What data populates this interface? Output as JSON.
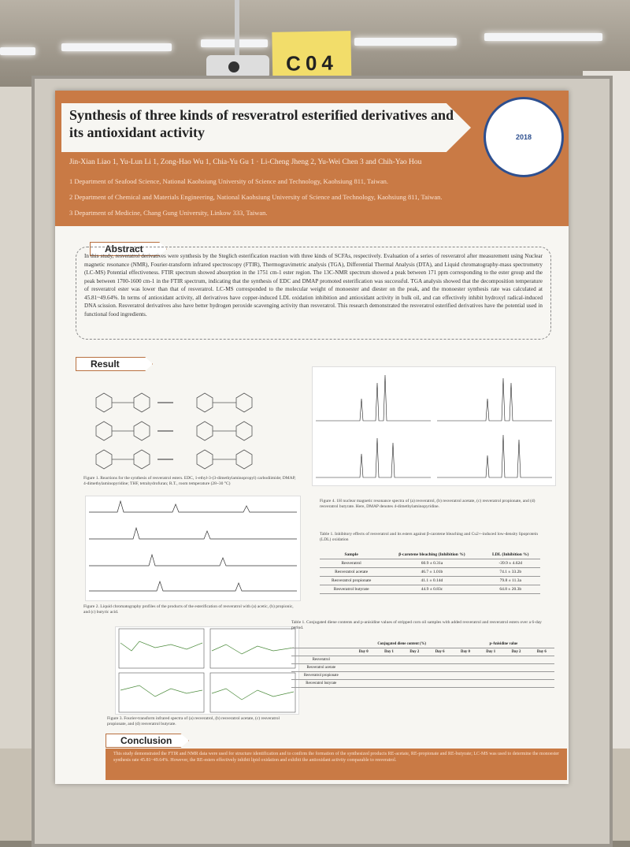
{
  "sign": {
    "label": "C04"
  },
  "poster": {
    "title_line1": "Synthesis of three kinds of resveratrol esterified derivatives and",
    "title_line2": "its antioxidant activity",
    "authors": "Jin-Xian Liao 1, Yu-Lun Li 1, Zong-Hao Wu 1, Chia-Yu Gu 1 · Li-Cheng Jheng 2, Yu-Wei Chen 3 and Chih-Yao Hou",
    "affiliations": [
      "1 Department of Seafood Science, National Kaohsiung University of Science and Technology, Kaohsiung 811, Taiwan.",
      "2 Department of Chemical and Materials Engineering, National Kaohsiung University of Science and Technology, Kaohsiung 811, Taiwan.",
      "3 Department of Medicine, Chang Gung University, Linkow 333, Taiwan."
    ],
    "logo_year": "2018",
    "abstract_heading": "Abstract",
    "abstract_text": "In this study, resveratrol derivatives were synthesis by the Steglich esterification reaction with three kinds of SCFAs, respectively. Evaluation of a series of resveratrol after measurement using Nuclear magnetic resonance (NMR), Fourier-transform infrared spectroscopy (FTIR), Thermogravimetric analysis (TGA), Differential Thermal Analysis (DTA), and Liquid chromatography-mass spectrometry (LC-MS) Potential effectiveness. FTIR spectrum showed absorption in the 1751 cm-1 ester region. The 13C-NMR spectrum showed a peak between 171 ppm corresponding to the ester group and the peak between 1700-1600 cm-1 in the FTIR spectrum, indicating that the synthesis of EDC and DMAP promoted esterification was successful. TGA analysis showed that the decomposition temperature of resveratrol ester was lower than that of resveratrol. LC-MS corresponded to the molecular weight of monoester and diester on the peak, and the monoester synthesis rate was calculated at 45.81~49.64%. In terms of antioxidant activity, all derivatives have copper-induced LDL oxidation inhibition and antioxidant activity in bulk oil, and can effectively inhibit hydroxyl radical-induced DNA scission. Resveratrol derivatives also have better hydrogen peroxide scavenging activity than resveratrol. This research demonstrated the resveratrol esterified derivatives have the potential used in functional food ingredients.",
    "result_heading": "Result",
    "fig1_caption": "Figure 1. Reactions for the synthesis of resveratrol esters. EDC, 1-ethyl-3-(3-dimethylaminopropyl) carbodiimide; DMAP, 4-dimethylaminopyridine; THF, tetrahydrofuran; R.T., room temperature (28~30 °C)",
    "fig2_caption": "Figure 2. Liquid chromatography profiles of the products of the esterification of resveratrol with (a) acetic, (b) propionic, and (c) butyric acid.",
    "fig3_caption": "Figure 3. Fourier-transform infrared spectra of (a) resveratrol, (b) resveratrol acetate, (c) resveratrol propionate, and (d) resveratrol butyrate.",
    "fig4_caption": "Figure 4. 1H nuclear magnetic resonance spectra of (a) resveratrol, (b) resveratrol acetate, (c) resveratrol propionate, and (d) resveratrol butyrate. Here, DMAP denotes 4-dimethylaminopyridine.",
    "table1_caption": "Table 1. Inhibitory effects of resveratrol and its esters against β-carotene bleaching and Cu2+-induced low-density lipoprotein (LDL) oxidation",
    "table1": {
      "headers": [
        "Sample",
        "β-carotene bleaching (Inhibition %)",
        "LDL (Inhibition %)"
      ],
      "rows": [
        [
          "Resveratrol",
          "60.9 ± 0.31a",
          "-39.9 ± 4.62d"
        ],
        [
          "Resveratrol acetate",
          "46.7 ± 1.01b",
          "74.1 ± 33.2b"
        ],
        [
          "Resveratrol propionate",
          "41.1 ± 0.14d",
          "79.8 ± 11.3a"
        ],
        [
          "Resveratrol butyrate",
          "44.9 ± 0.83c",
          "64.8 ± 20.3b"
        ]
      ]
    },
    "table2_caption": "Table 1. Conjugated diene contents and p-anisidine values of stripped corn oil samples with added resveratrol and resveratrol esters over a 6-day period.",
    "table2": {
      "group_headers": [
        "Conjugated diene content (%)",
        "p-Anisidine value"
      ],
      "sub_header": "Storage period",
      "days": [
        "Day 0",
        "Day 1",
        "Day 2",
        "Day 6",
        "Day 0",
        "Day 1",
        "Day 2",
        "Day 6"
      ],
      "samples": [
        "Resveratrol",
        "Resveratrol acetate",
        "Resveratrol propionate",
        "Resveratrol butyrate"
      ]
    },
    "conclusion_heading": "Conclusion",
    "conclusion_text": "This study demonstrated the FTIR and NMR data were used for structure identification and to confirm the formation of the synthesized products RE-acetate, RE-propionate and RE-butyrate; LC-MS was used to determine the monoester synthesis rate 45.81~49.64%. However, the RE-esters effectively inhibit lipid oxidation and exhibit the antioxidant activity comparable to resveratrol."
  }
}
